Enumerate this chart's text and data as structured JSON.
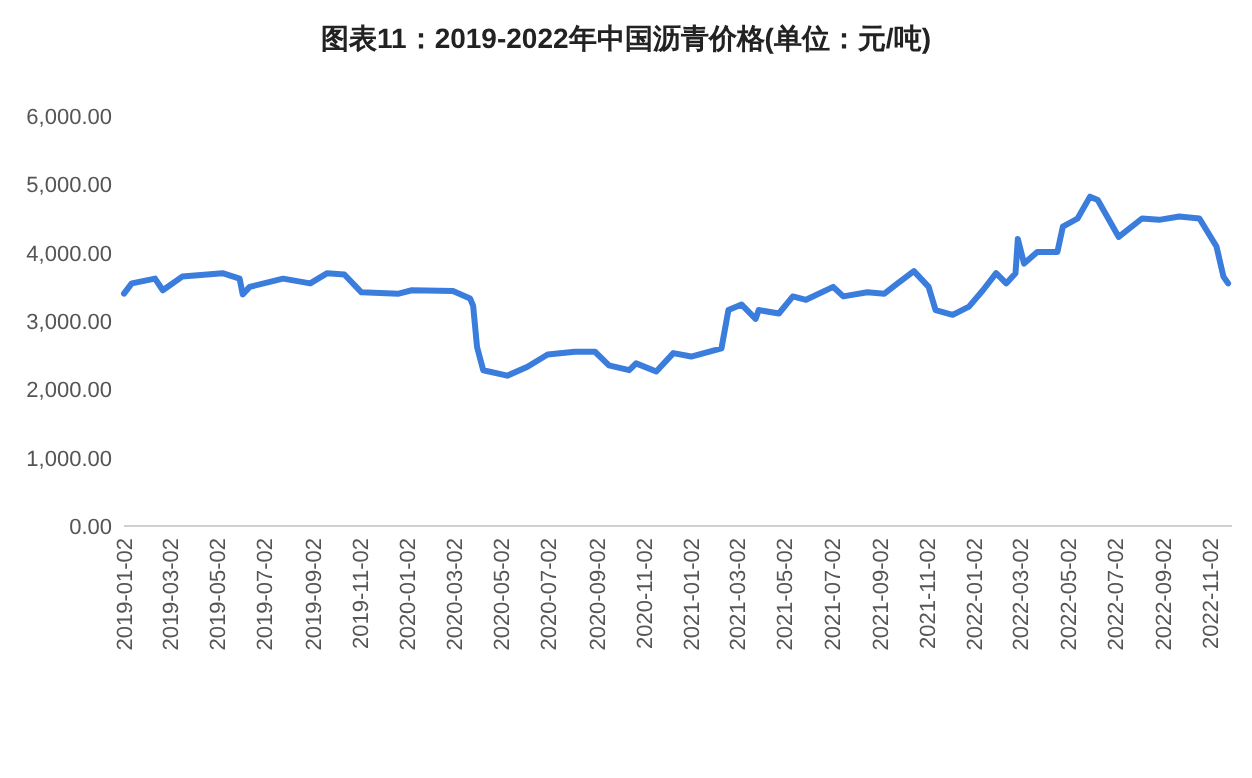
{
  "chart_data": {
    "type": "line",
    "title": "图表11：2019-2022年中国沥青价格(单位：元/吨)",
    "x": [
      "2019-01-02",
      "2019-01-12",
      "2019-02-11",
      "2019-02-21",
      "2019-03-18",
      "2019-05-09",
      "2019-05-31",
      "2019-06-04",
      "2019-06-13",
      "2019-07-26",
      "2019-08-30",
      "2019-09-21",
      "2019-10-13",
      "2019-11-04",
      "2019-12-22",
      "2020-01-08",
      "2020-03-01",
      "2020-03-23",
      "2020-03-27",
      "2020-04-01",
      "2020-04-09",
      "2020-05-10",
      "2020-06-05",
      "2020-07-01",
      "2020-08-05",
      "2020-08-31",
      "2020-09-18",
      "2020-10-14",
      "2020-10-23",
      "2020-11-18",
      "2020-12-10",
      "2021-01-02",
      "2021-02-10",
      "2021-02-19",
      "2021-03-08",
      "2021-03-26",
      "2021-03-30",
      "2021-04-25",
      "2021-05-13",
      "2021-05-30",
      "2021-07-04",
      "2021-07-17",
      "2021-08-17",
      "2021-09-08",
      "2021-09-25",
      "2021-10-16",
      "2021-11-04",
      "2021-11-13",
      "2021-12-05",
      "2021-12-26",
      "2022-01-13",
      "2022-01-30",
      "2022-02-12",
      "2022-02-24",
      "2022-02-27",
      "2022-03-07",
      "2022-03-24",
      "2022-04-19",
      "2022-04-26",
      "2022-05-15",
      "2022-05-31",
      "2022-06-10",
      "2022-07-07",
      "2022-08-06",
      "2022-08-28",
      "2022-09-23",
      "2022-10-19",
      "2022-11-10",
      "2022-11-19",
      "2022-11-25"
    ],
    "series": [
      {
        "color": "#3b7ddd",
        "values": [
          3400,
          3550,
          3620,
          3450,
          3650,
          3700,
          3620,
          3390,
          3500,
          3620,
          3550,
          3700,
          3680,
          3420,
          3400,
          3450,
          3440,
          3330,
          3220,
          2620,
          2280,
          2200,
          2330,
          2510,
          2550,
          2550,
          2350,
          2280,
          2380,
          2260,
          2530,
          2480,
          2600,
          3160,
          3240,
          3030,
          3160,
          3110,
          3360,
          3310,
          3500,
          3360,
          3420,
          3400,
          3550,
          3730,
          3500,
          3160,
          3090,
          3210,
          3450,
          3700,
          3550,
          3700,
          4200,
          3840,
          4010,
          4010,
          4380,
          4500,
          4820,
          4770,
          4230,
          4500,
          4480,
          4530,
          4500,
          4090,
          3650,
          3550
        ]
      }
    ],
    "xlim": [
      "2019-01-02",
      "2022-11-30"
    ],
    "xticks": [
      "2019-01-02",
      "2019-03-02",
      "2019-05-02",
      "2019-07-02",
      "2019-09-02",
      "2019-11-02",
      "2020-01-02",
      "2020-03-02",
      "2020-05-02",
      "2020-07-02",
      "2020-09-02",
      "2020-11-02",
      "2021-01-02",
      "2021-03-02",
      "2021-05-02",
      "2021-07-02",
      "2021-09-02",
      "2021-11-02",
      "2022-01-02",
      "2022-03-02",
      "2022-05-02",
      "2022-07-02",
      "2022-09-02",
      "2022-11-02"
    ],
    "ylim": [
      0,
      6000
    ],
    "yticks": [
      {
        "value": 0,
        "label": "0.00"
      },
      {
        "value": 1000,
        "label": "1,000.00"
      },
      {
        "value": 2000,
        "label": "2,000.00"
      },
      {
        "value": 3000,
        "label": "3,000.00"
      },
      {
        "value": 4000,
        "label": "4,000.00"
      },
      {
        "value": 5000,
        "label": "5,000.00"
      },
      {
        "value": 6000,
        "label": "6,000.00"
      }
    ],
    "grid": false,
    "marker": "none",
    "line_style": "solid"
  }
}
